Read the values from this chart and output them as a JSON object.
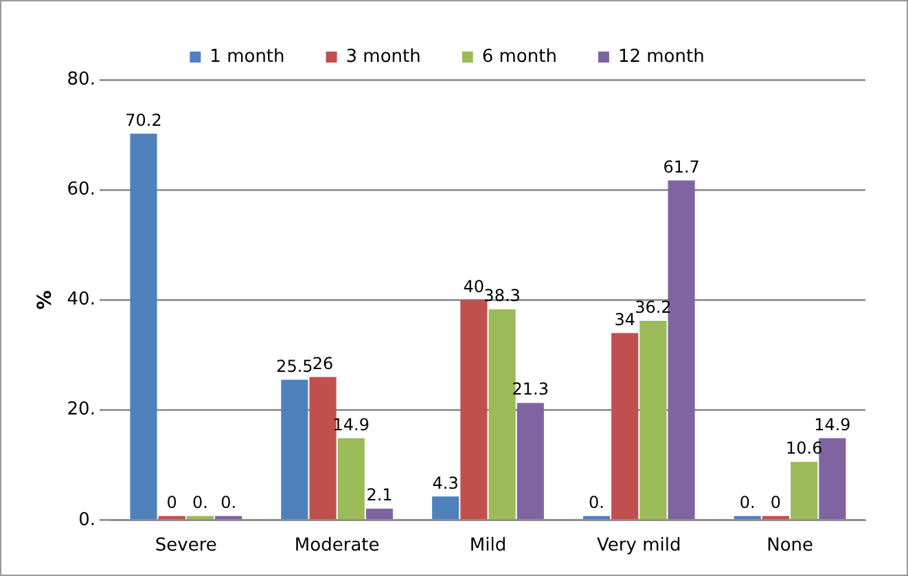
{
  "chart_data": {
    "type": "bar",
    "ylabel": "%",
    "categories": [
      "Severe",
      "Moderate",
      "Mild",
      "Very mild",
      "None"
    ],
    "series": [
      {
        "name": "1 month",
        "color": "#4f81bd",
        "values": [
          70.2,
          25.5,
          4.3,
          0,
          0
        ],
        "value_labels": [
          "70.2",
          "25.5",
          "4.3",
          "0.",
          "0."
        ]
      },
      {
        "name": "3 month",
        "color": "#c0504d",
        "values": [
          0,
          26,
          40,
          34,
          0
        ],
        "value_labels": [
          "0",
          "26",
          "40",
          "34",
          "0"
        ]
      },
      {
        "name": "6 month",
        "color": "#9bbb59",
        "values": [
          0,
          14.9,
          38.3,
          36.2,
          10.6
        ],
        "value_labels": [
          "0.",
          "14.9",
          "38.3",
          "36.2",
          "10.6"
        ]
      },
      {
        "name": "12 month",
        "color": "#8064a2",
        "values": [
          0,
          2.1,
          21.3,
          61.7,
          14.9
        ],
        "value_labels": [
          "0.",
          "2.1",
          "21.3",
          "61.7",
          "14.9"
        ]
      }
    ],
    "ylim": [
      0,
      80
    ],
    "yticks": [
      {
        "value": 0,
        "label": "0."
      },
      {
        "value": 20,
        "label": "20."
      },
      {
        "value": 40,
        "label": "40."
      },
      {
        "value": 60,
        "label": "60."
      },
      {
        "value": 80,
        "label": "80."
      }
    ],
    "grid": "y",
    "legend": "top"
  }
}
